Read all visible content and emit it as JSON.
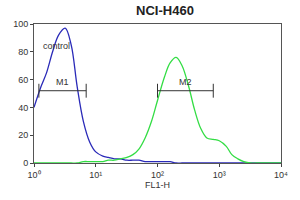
{
  "chart_data": {
    "type": "line",
    "title": "NCI-H460",
    "x_label": "FL1-H",
    "log": "x",
    "grid": false,
    "x": [
      1,
      1.3,
      1.6,
      2,
      2.5,
      3.2,
      4,
      5,
      6.3,
      8,
      10,
      13,
      16,
      20,
      25,
      32,
      40,
      50,
      63,
      80,
      100,
      130,
      160,
      200,
      250,
      320,
      400,
      500,
      630,
      800,
      1000,
      1300,
      1600,
      2000,
      2500,
      3200,
      4000,
      5000,
      6300,
      8000,
      10000
    ],
    "series": [
      {
        "name": "control",
        "color": "#2a2ab8",
        "values": [
          40,
          55,
          65,
          80,
          92,
          97,
          85,
          55,
          30,
          15,
          8,
          5,
          4,
          3,
          3,
          2,
          2,
          2,
          1,
          1,
          1,
          1,
          1,
          0,
          0,
          0,
          0,
          0,
          0,
          0,
          0,
          0,
          0,
          0,
          0,
          0,
          0,
          0,
          0,
          0,
          0
        ]
      },
      {
        "color": "#33dd44",
        "values": [
          0,
          0,
          0,
          0,
          0,
          0,
          0,
          0,
          1,
          1,
          1,
          1,
          2,
          2,
          3,
          4,
          6,
          10,
          18,
          30,
          45,
          62,
          72,
          76,
          70,
          55,
          38,
          25,
          18,
          17,
          16,
          12,
          6,
          3,
          1,
          0,
          0,
          0,
          0,
          0,
          0
        ]
      }
    ],
    "gates": [
      {
        "label": "M1",
        "range": [
          1.2,
          7
        ],
        "y": 52
      },
      {
        "label": "M2",
        "range": [
          100,
          800
        ],
        "y": 52
      }
    ],
    "annotations": [
      {
        "text": "control",
        "x": 2.3,
        "y": 84
      }
    ],
    "xlim": [
      1,
      10000
    ],
    "xticks": [
      {
        "value": 1,
        "label": "10⁰"
      },
      {
        "value": 10,
        "label": "10¹"
      },
      {
        "value": 100,
        "label": "10²"
      },
      {
        "value": 1000,
        "label": "10³"
      },
      {
        "value": 10000,
        "label": "10⁴"
      }
    ],
    "ylim": [
      0,
      100
    ],
    "yticks": [
      0,
      20,
      40,
      60,
      80,
      100
    ]
  }
}
